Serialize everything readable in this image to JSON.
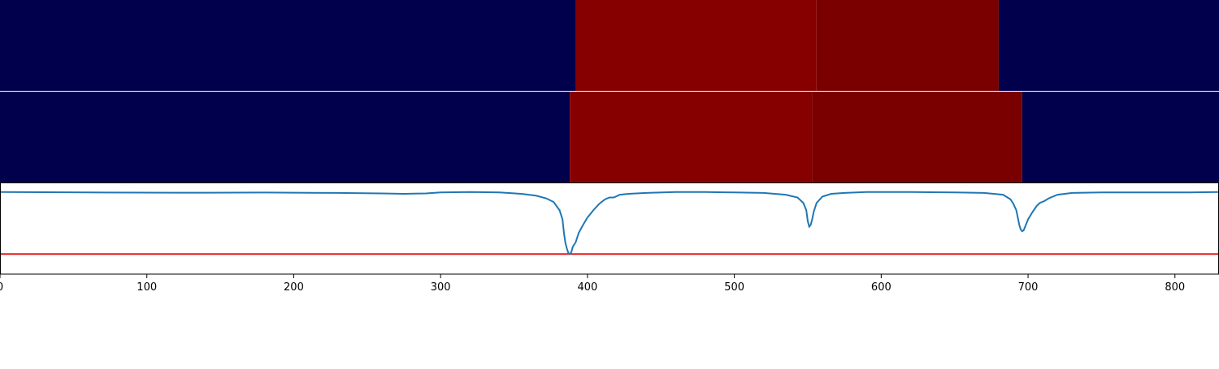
{
  "chart_data": [
    {
      "type": "heatmap",
      "title": "",
      "xlim": [
        0,
        830
      ],
      "segments": [
        {
          "x0": 0,
          "x1": 392,
          "color": "#00004c"
        },
        {
          "x0": 392,
          "x1": 556,
          "color": "#870000"
        },
        {
          "x0": 556,
          "x1": 680,
          "color": "#7a0000"
        },
        {
          "x0": 680,
          "x1": 830,
          "color": "#00004c"
        }
      ]
    },
    {
      "type": "heatmap",
      "title": "",
      "xlim": [
        0,
        830
      ],
      "segments": [
        {
          "x0": 0,
          "x1": 388,
          "color": "#00004c"
        },
        {
          "x0": 388,
          "x1": 553,
          "color": "#870000"
        },
        {
          "x0": 553,
          "x1": 696,
          "color": "#7a0000"
        },
        {
          "x0": 696,
          "x1": 830,
          "color": "#00004c"
        }
      ]
    },
    {
      "type": "line",
      "title": "",
      "xlabel": "",
      "ylabel": "",
      "xlim": [
        0,
        830
      ],
      "ylim": [
        -0.9,
        0.1
      ],
      "x_ticks": [
        0,
        100,
        200,
        300,
        400,
        500,
        600,
        700,
        800
      ],
      "x_tick_labels": [
        "0",
        "100",
        "200",
        "300",
        "400",
        "500",
        "600",
        "700",
        "800"
      ],
      "threshold": {
        "y": -0.68,
        "color": "#e31a1c"
      },
      "series": [
        {
          "color": "#1f77b4",
          "x": [
            0,
            60,
            120,
            180,
            230,
            260,
            275,
            290,
            300,
            320,
            340,
            355,
            365,
            372,
            377,
            381,
            383,
            384,
            385,
            386,
            387,
            388,
            389,
            390,
            392,
            394,
            397,
            400,
            404,
            408,
            412,
            415,
            418,
            422,
            428,
            440,
            460,
            480,
            500,
            520,
            535,
            543,
            547,
            549,
            550,
            551,
            552,
            553,
            554,
            556,
            560,
            566,
            575,
            590,
            620,
            650,
            670,
            683,
            688,
            690,
            692,
            693,
            694,
            695,
            696,
            697,
            698,
            700,
            703,
            706,
            708,
            711,
            714,
            720,
            730,
            750,
            780,
            810,
            830
          ],
          "y": [
            0.0,
            -0.005,
            -0.008,
            -0.006,
            -0.01,
            -0.015,
            -0.02,
            -0.015,
            -0.005,
            0.0,
            -0.005,
            -0.02,
            -0.04,
            -0.07,
            -0.11,
            -0.2,
            -0.3,
            -0.45,
            -0.56,
            -0.62,
            -0.67,
            -0.68,
            -0.66,
            -0.6,
            -0.55,
            -0.45,
            -0.36,
            -0.28,
            -0.2,
            -0.13,
            -0.08,
            -0.06,
            -0.06,
            -0.03,
            -0.02,
            -0.01,
            0.0,
            0.0,
            -0.005,
            -0.01,
            -0.03,
            -0.06,
            -0.12,
            -0.2,
            -0.32,
            -0.38,
            -0.36,
            -0.3,
            -0.22,
            -0.12,
            -0.05,
            -0.02,
            -0.01,
            0.0,
            0.0,
            -0.005,
            -0.01,
            -0.03,
            -0.08,
            -0.13,
            -0.2,
            -0.28,
            -0.36,
            -0.41,
            -0.43,
            -0.42,
            -0.38,
            -0.3,
            -0.22,
            -0.15,
            -0.12,
            -0.1,
            -0.07,
            -0.03,
            -0.01,
            -0.005,
            -0.005,
            -0.005,
            0.0
          ]
        }
      ]
    }
  ]
}
